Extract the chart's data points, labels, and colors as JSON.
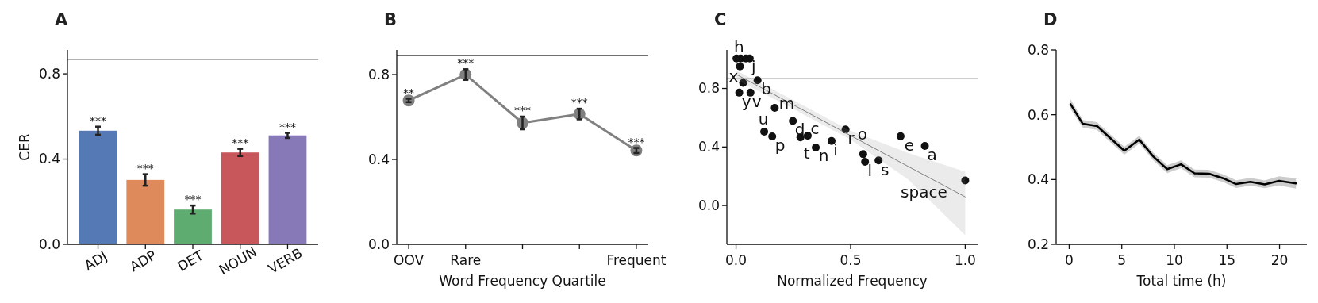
{
  "chart_data": [
    {
      "type": "bar",
      "title": "A",
      "ylabel": "CER",
      "categories": [
        "ADJ",
        "ADP",
        "DET",
        "NOUN",
        "VERB"
      ],
      "values": [
        0.533,
        0.302,
        0.163,
        0.431,
        0.511
      ],
      "colors": [
        "#4c72b0",
        "#dd8452",
        "#55a868",
        "#c44e52",
        "#8172b3"
      ],
      "errors": [
        0.019,
        0.027,
        0.019,
        0.017,
        0.012
      ],
      "ylim": [
        0,
        0.912
      ],
      "yticks": [
        {
          "value": 0,
          "label": "0.0"
        },
        {
          "value": 0.4,
          "label": "0.4"
        },
        {
          "value": 0.8,
          "label": "0.8"
        }
      ],
      "ref_lines": [
        {
          "axis": "y",
          "value": 0.866,
          "color": "#b0b0b0"
        }
      ],
      "annotations": [
        {
          "text": "***",
          "x": "ADJ",
          "y": 0.552
        },
        {
          "text": "***",
          "x": "ADP",
          "y": 0.329
        },
        {
          "text": "***",
          "x": "DET",
          "y": 0.182
        },
        {
          "text": "***",
          "x": "NOUN",
          "y": 0.448
        },
        {
          "text": "***",
          "x": "VERB",
          "y": 0.523
        }
      ]
    },
    {
      "type": "line",
      "title": "B",
      "xlabel": "Word Frequency Quartile",
      "categories": [
        "OOV",
        "Rare",
        null,
        null,
        "Frequent"
      ],
      "marker": "circle",
      "series": [
        {
          "color": "#808080",
          "values": [
            0.678,
            0.8,
            0.572,
            0.614,
            0.442
          ],
          "errors": [
            0.008,
            0.025,
            0.03,
            0.025,
            0.012
          ]
        }
      ],
      "ylim": [
        0,
        0.916
      ],
      "yticks": [
        {
          "value": 0,
          "label": "0.0"
        },
        {
          "value": 0.4,
          "label": "0.4"
        },
        {
          "value": 0.8,
          "label": "0.8"
        }
      ],
      "ref_lines": [
        {
          "axis": "y",
          "value": 0.891,
          "color": "#707070"
        }
      ],
      "annotations": [
        {
          "text": "**",
          "x": "OOV",
          "y": 0.686
        },
        {
          "text": "***",
          "x": "Rare",
          "y": 0.825
        },
        {
          "text": "***",
          "y": 0.602
        },
        {
          "text": "***",
          "y": 0.639
        },
        {
          "text": "***",
          "x": "Frequent",
          "y": 0.454
        }
      ]
    },
    {
      "type": "scatter",
      "title": "C",
      "xlabel": "Normalized Frequency",
      "marker": "circle",
      "series": [
        {
          "color": "#111111",
          "x": [
            0.002,
            0.02,
            0.043,
            0.06,
            0.017,
            0.031,
            0.094,
            0.014,
            0.063,
            0.169,
            0.248,
            0.281,
            0.313,
            0.123,
            0.158,
            0.348,
            0.417,
            0.478,
            0.555,
            0.563,
            0.622,
            0.718,
            0.824,
            1.0
          ],
          "values": [
            1.005,
            1.005,
            1.005,
            1.005,
            0.951,
            0.838,
            0.856,
            0.771,
            0.771,
            0.667,
            0.578,
            0.465,
            0.477,
            0.505,
            0.472,
            0.396,
            0.441,
            0.519,
            0.351,
            0.299,
            0.308,
            0.474,
            0.407,
            0.171
          ]
        },
        {
          "type": "line",
          "marker": "none",
          "color": "#808080",
          "x": [
            0,
            0.25,
            0.5,
            0.75,
            1.0
          ],
          "values": [
            0.897,
            0.688,
            0.478,
            0.268,
            0.059
          ],
          "lower": [
            0.861,
            0.66,
            0.45,
            0.18,
            -0.202
          ],
          "upper": [
            0.924,
            0.72,
            0.51,
            0.36,
            0.231
          ]
        }
      ],
      "xlim": [
        -0.04,
        1.054
      ],
      "xticks": [
        {
          "value": 0,
          "label": "0.0"
        },
        {
          "value": 0.5,
          "label": "0.5"
        },
        {
          "value": 1,
          "label": "1.0"
        }
      ],
      "ylim": [
        -0.265,
        1.063
      ],
      "yticks": [
        {
          "value": 0,
          "label": "0.0"
        },
        {
          "value": 0.4,
          "label": "0.4"
        },
        {
          "value": 0.8,
          "label": "0.8"
        }
      ],
      "ref_lines": [
        {
          "axis": "y",
          "value": 0.867,
          "color": "#a0a0a0"
        }
      ],
      "annotations": [
        {
          "text": "h",
          "x": 0.02,
          "y": 1.005
        },
        {
          "text": "j",
          "x": 0.06,
          "y": 1.005
        },
        {
          "text": "x",
          "x": 0.031,
          "y": 0.838
        },
        {
          "text": "b",
          "x": 0.094,
          "y": 0.856
        },
        {
          "text": "y",
          "x": 0.014,
          "y": 0.771
        },
        {
          "text": "v",
          "x": 0.063,
          "y": 0.771
        },
        {
          "text": "m",
          "x": 0.169,
          "y": 0.667
        },
        {
          "text": "u",
          "x": 0.123,
          "y": 0.505
        },
        {
          "text": "d",
          "x": 0.248,
          "y": 0.578
        },
        {
          "text": "c",
          "x": 0.313,
          "y": 0.477
        },
        {
          "text": "p",
          "x": 0.158,
          "y": 0.472
        },
        {
          "text": "t",
          "x": 0.281,
          "y": 0.465
        },
        {
          "text": "n",
          "x": 0.348,
          "y": 0.396
        },
        {
          "text": "i",
          "x": 0.417,
          "y": 0.441
        },
        {
          "text": "r",
          "x": 0.478,
          "y": 0.519
        },
        {
          "text": "o",
          "x": 0.555,
          "y": 0.351
        },
        {
          "text": "l",
          "x": 0.563,
          "y": 0.299
        },
        {
          "text": "s",
          "x": 0.622,
          "y": 0.308
        },
        {
          "text": "e",
          "x": 0.718,
          "y": 0.474
        },
        {
          "text": "a",
          "x": 0.824,
          "y": 0.407
        },
        {
          "text": "space",
          "x": 1.0,
          "y": 0.171
        }
      ]
    },
    {
      "type": "line",
      "title": "D",
      "xlabel": "Total time (h)",
      "x": [
        0.12,
        1.29,
        2.65,
        4.0,
        5.24,
        6.67,
        8.0,
        9.32,
        10.63,
        11.92,
        13.28,
        14.63,
        15.87,
        17.23,
        18.59,
        19.95,
        21.56
      ],
      "series": [
        {
          "color": "#000000",
          "values": [
            0.633,
            0.572,
            0.565,
            0.525,
            0.489,
            0.523,
            0.471,
            0.432,
            0.447,
            0.419,
            0.418,
            0.404,
            0.386,
            0.393,
            0.385,
            0.396,
            0.388
          ],
          "lower": [
            0.618,
            0.56,
            0.553,
            0.513,
            0.477,
            0.511,
            0.459,
            0.42,
            0.435,
            0.407,
            0.406,
            0.392,
            0.374,
            0.381,
            0.373,
            0.382,
            0.372
          ],
          "upper": [
            0.648,
            0.584,
            0.577,
            0.537,
            0.501,
            0.535,
            0.483,
            0.444,
            0.459,
            0.431,
            0.43,
            0.416,
            0.398,
            0.405,
            0.397,
            0.41,
            0.404
          ]
        }
      ],
      "xlim": [
        -1.24,
        22.6
      ],
      "xticks": [
        0,
        5,
        10,
        15,
        20
      ],
      "ylim": [
        0.2,
        0.8
      ],
      "yticks": [
        {
          "value": 0.2,
          "label": "0.2"
        },
        {
          "value": 0.4,
          "label": "0.4"
        },
        {
          "value": 0.6,
          "label": "0.6"
        },
        {
          "value": 0.8,
          "label": "0.8"
        }
      ]
    }
  ]
}
